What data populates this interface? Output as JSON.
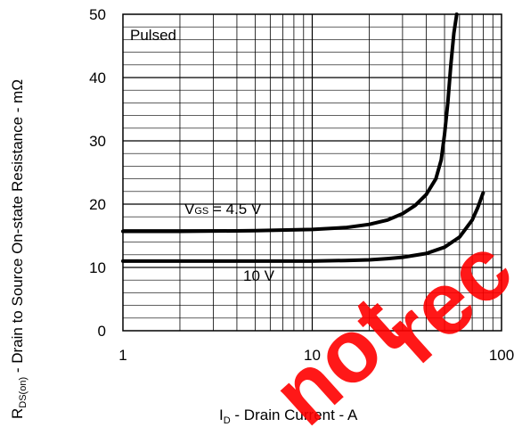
{
  "chart_data": {
    "type": "line",
    "x_scale": "log",
    "xlim": [
      1,
      100
    ],
    "ylim": [
      0,
      50
    ],
    "grid": true,
    "x_ticks": [
      {
        "value": 1,
        "label": "1"
      },
      {
        "value": 10,
        "label": "10"
      },
      {
        "value": 100,
        "label": "100"
      }
    ],
    "y_ticks": [
      {
        "value": 0,
        "label": "0"
      },
      {
        "value": 10,
        "label": "10"
      },
      {
        "value": 20,
        "label": "20"
      },
      {
        "value": 30,
        "label": "30"
      },
      {
        "value": 40,
        "label": "40"
      },
      {
        "value": 50,
        "label": "50"
      }
    ],
    "xlabel": {
      "main": "I",
      "sub": "D",
      "rest": " - Drain Current - A"
    },
    "ylabel": {
      "main": "R",
      "sub": "DS(on)",
      "rest": " - Drain to Source On-state Resistance - mΩ"
    },
    "annotation": "Pulsed",
    "series": [
      {
        "name": "VGS = 4.5 V",
        "label": {
          "main": "V",
          "sub": "GS",
          "rest": " = 4.5 V"
        },
        "x": [
          1,
          2,
          5,
          10,
          15,
          20,
          25,
          30,
          35,
          40,
          45,
          48,
          50,
          52,
          54,
          56,
          58
        ],
        "y": [
          15.7,
          15.7,
          15.8,
          16.0,
          16.3,
          16.8,
          17.5,
          18.5,
          19.8,
          21.5,
          24.0,
          27.0,
          31.0,
          36.0,
          42.0,
          47.0,
          50.0
        ]
      },
      {
        "name": "10 V",
        "label": {
          "main": "10 V"
        },
        "x": [
          1,
          2,
          5,
          10,
          15,
          20,
          25,
          30,
          40,
          50,
          60,
          70,
          75,
          80
        ],
        "y": [
          11.0,
          11.0,
          11.0,
          11.0,
          11.1,
          11.2,
          11.4,
          11.6,
          12.2,
          13.2,
          14.8,
          17.5,
          19.5,
          21.8
        ]
      }
    ]
  },
  "watermark": {
    "text": "not recommended",
    "color": "#ff0000"
  }
}
